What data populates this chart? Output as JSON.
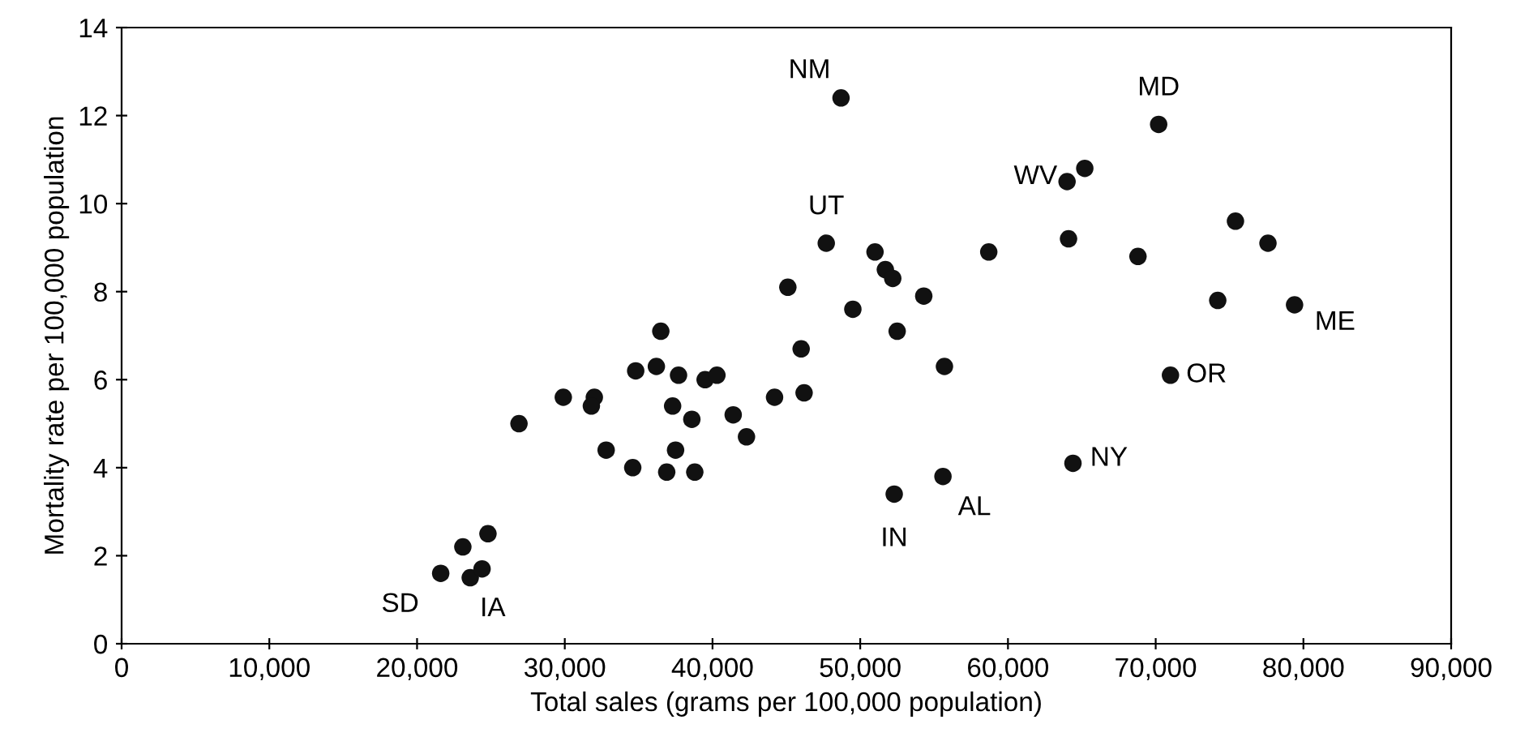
{
  "chart_data": {
    "type": "scatter",
    "xlabel": "Total sales (grams per 100,000 population)",
    "ylabel": "Mortality rate per 100,000 population",
    "x": [
      21600,
      23100,
      24800,
      23600,
      24400,
      26900,
      29900,
      32000,
      31800,
      34800,
      36200,
      36500,
      37700,
      39500,
      40300,
      37300,
      38600,
      41400,
      42300,
      44200,
      45100,
      46000,
      46200,
      32800,
      34600,
      37500,
      36900,
      38800,
      48700,
      47700,
      51000,
      51700,
      52200,
      54300,
      49500,
      52500,
      55700,
      58700,
      64000,
      64100,
      52300,
      55600,
      70200,
      65200,
      75400,
      77600,
      68800,
      74200,
      79400,
      71000,
      64400
    ],
    "values": [
      1.6,
      2.2,
      2.5,
      1.5,
      1.7,
      5.0,
      5.6,
      5.6,
      5.4,
      6.2,
      6.3,
      7.1,
      6.1,
      6.0,
      6.1,
      5.4,
      5.1,
      5.2,
      4.7,
      5.6,
      8.1,
      6.7,
      5.7,
      4.4,
      4.0,
      4.4,
      3.9,
      3.9,
      12.4,
      9.1,
      8.9,
      8.5,
      8.3,
      7.9,
      7.6,
      7.1,
      6.3,
      8.9,
      10.5,
      9.2,
      3.4,
      3.8,
      11.8,
      10.8,
      9.6,
      9.1,
      8.8,
      7.8,
      7.7,
      6.1,
      4.1
    ],
    "color": "#111111",
    "marker": "circle",
    "grid": false,
    "xlim": [
      0,
      90000
    ],
    "xticks": [
      {
        "value": 0,
        "label": "0"
      },
      {
        "value": 10000,
        "label": "10,000"
      },
      {
        "value": 20000,
        "label": "20,000"
      },
      {
        "value": 30000,
        "label": "30,000"
      },
      {
        "value": 40000,
        "label": "40,000"
      },
      {
        "value": 50000,
        "label": "50,000"
      },
      {
        "value": 60000,
        "label": "60,000"
      },
      {
        "value": 70000,
        "label": "70,000"
      },
      {
        "value": 80000,
        "label": "80,000"
      },
      {
        "value": 90000,
        "label": "90,000"
      }
    ],
    "ylim": [
      0,
      14
    ],
    "yticks": [
      0,
      2,
      4,
      6,
      8,
      10,
      12,
      14
    ],
    "annotations": [
      {
        "text": "SD",
        "x": 21600,
        "y": 1.6
      },
      {
        "text": "IA",
        "x": 23600,
        "y": 1.5
      },
      {
        "text": "NM",
        "x": 48700,
        "y": 12.4
      },
      {
        "text": "UT",
        "x": 47700,
        "y": 9.1
      },
      {
        "text": "WV",
        "x": 64000,
        "y": 10.5
      },
      {
        "text": "MD",
        "x": 70200,
        "y": 11.8
      },
      {
        "text": "ME",
        "x": 79400,
        "y": 7.7
      },
      {
        "text": "OR",
        "x": 71000,
        "y": 6.1
      },
      {
        "text": "NY",
        "x": 64400,
        "y": 4.1
      },
      {
        "text": "IN",
        "x": 52300,
        "y": 3.4
      },
      {
        "text": "AL",
        "x": 55600,
        "y": 3.8
      }
    ]
  }
}
